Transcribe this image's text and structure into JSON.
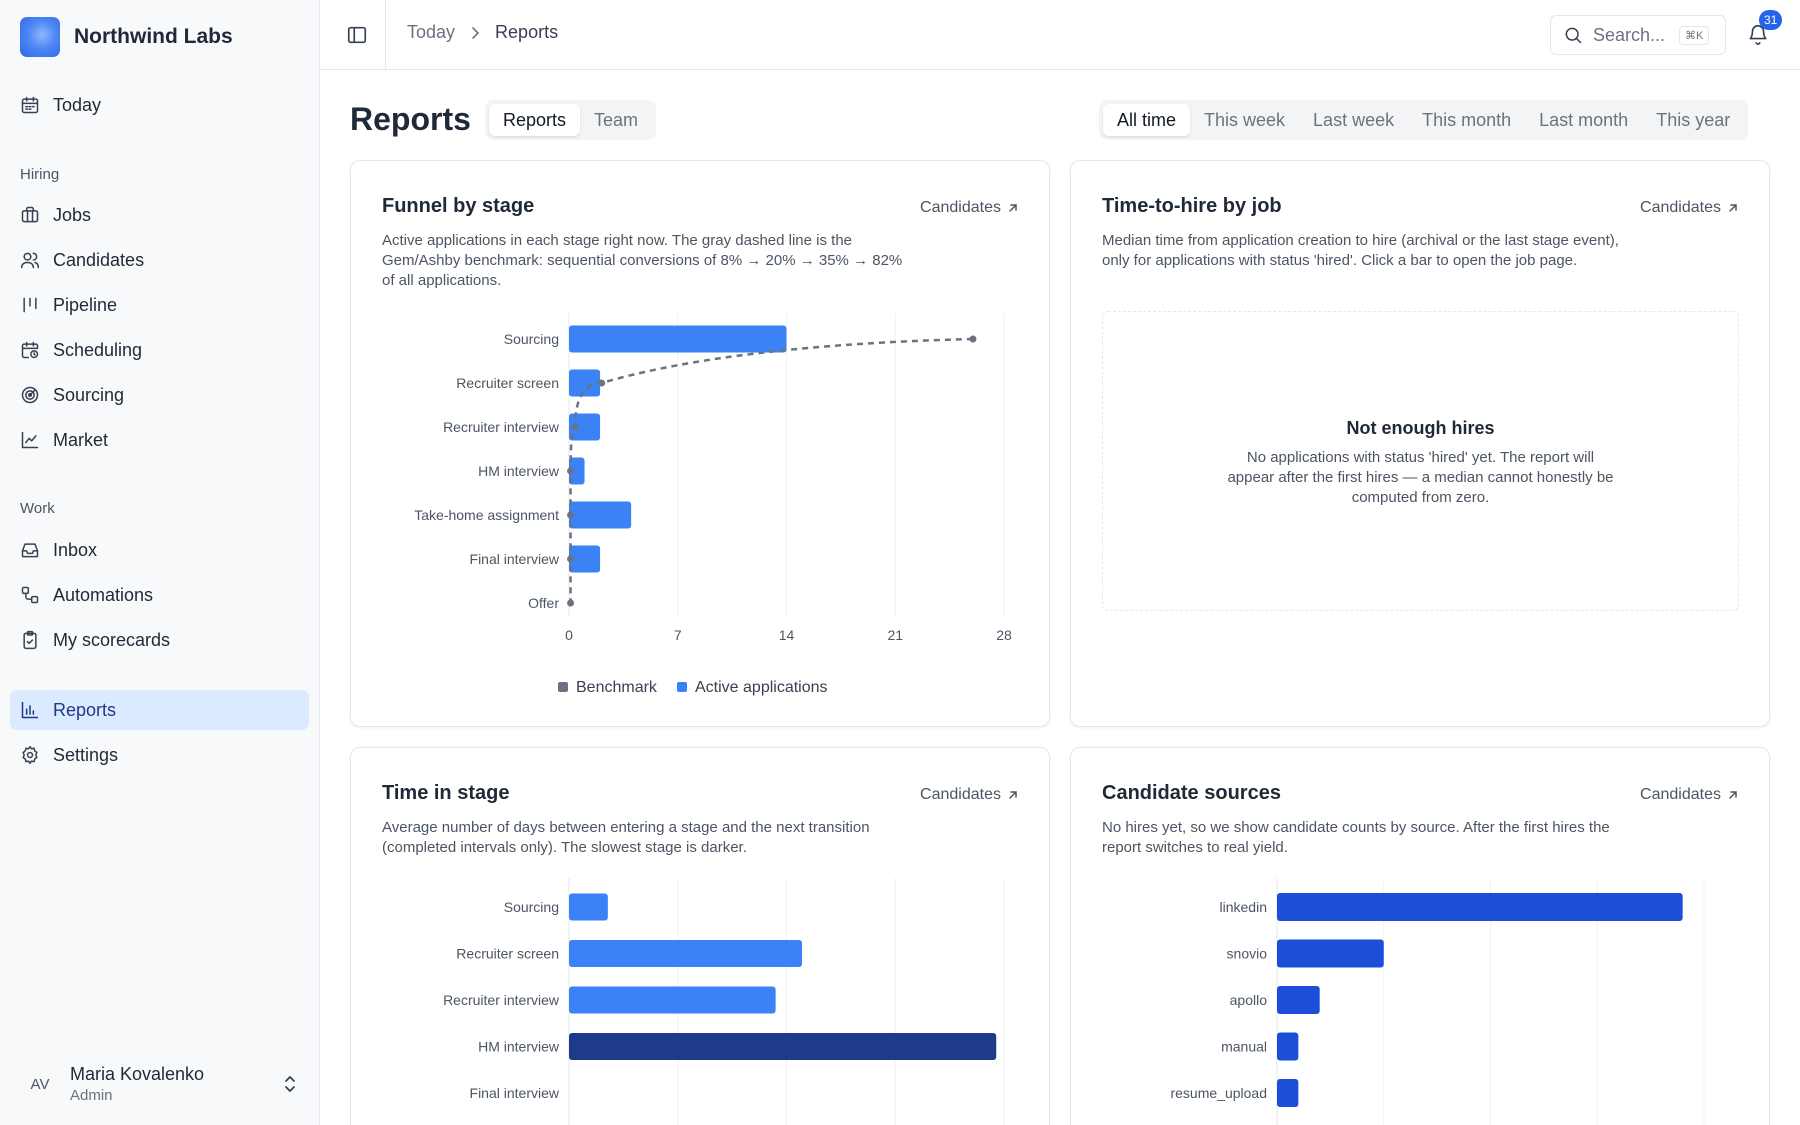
{
  "app": {
    "name": "Northwind Labs"
  },
  "sidebar": {
    "top_item": {
      "label": "Today",
      "icon": "calendar-icon"
    },
    "sections": [
      {
        "title": "Hiring",
        "items": [
          {
            "label": "Jobs",
            "icon": "briefcase-icon"
          },
          {
            "label": "Candidates",
            "icon": "users-icon"
          },
          {
            "label": "Pipeline",
            "icon": "kanban-icon"
          },
          {
            "label": "Scheduling",
            "icon": "calendar-clock-icon"
          },
          {
            "label": "Sourcing",
            "icon": "radar-icon"
          },
          {
            "label": "Market",
            "icon": "line-chart-icon"
          }
        ]
      },
      {
        "title": "Work",
        "items": [
          {
            "label": "Inbox",
            "icon": "inbox-icon"
          },
          {
            "label": "Automations",
            "icon": "workflow-icon"
          },
          {
            "label": "My scorecards",
            "icon": "clipboard-check-icon"
          }
        ]
      }
    ],
    "bottom_items": [
      {
        "label": "Reports",
        "icon": "bar-chart-icon",
        "active": true
      },
      {
        "label": "Settings",
        "icon": "gear-icon"
      }
    ],
    "user": {
      "initials": "AV",
      "name": "Maria Kovalenko",
      "role": "Admin"
    }
  },
  "header": {
    "breadcrumb": {
      "parent": "Today",
      "current": "Reports"
    },
    "search": {
      "placeholder": "Search...",
      "shortcut": "⌘K"
    },
    "notifications_count": "31"
  },
  "page": {
    "title": "Reports",
    "view_tabs": [
      {
        "label": "Reports",
        "active": true
      },
      {
        "label": "Team",
        "active": false
      }
    ],
    "period_tabs": [
      {
        "label": "All time",
        "active": true
      },
      {
        "label": "This week"
      },
      {
        "label": "Last week"
      },
      {
        "label": "This month"
      },
      {
        "label": "Last month"
      },
      {
        "label": "This year"
      }
    ]
  },
  "cards": {
    "funnel": {
      "title": "Funnel by stage",
      "link": "Candidates",
      "description": "Active applications in each stage right now. The gray dashed line is the Gem/Ashby benchmark: sequential conversions of 8% → 20% → 35% → 82% of all applications."
    },
    "time_to_hire": {
      "title": "Time-to-hire by job",
      "link": "Candidates",
      "description": "Median time from application creation to hire (archival or the last stage event), only for applications with status 'hired'. Click a bar to open the job page.",
      "empty_title": "Not enough hires",
      "empty_description": "No applications with status 'hired' yet. The report will appear after the first hires — a median cannot honestly be computed from zero."
    },
    "time_in_stage": {
      "title": "Time in stage",
      "link": "Candidates",
      "description": "Average number of days between entering a stage and the next transition (completed intervals only). The slowest stage is darker."
    },
    "sources": {
      "title": "Candidate sources",
      "link": "Candidates",
      "description": "No hires yet, so we show candidate counts by source. After the first hires the report switches to real yield."
    }
  },
  "chart_data": [
    {
      "id": "funnel",
      "type": "bar",
      "orientation": "horizontal",
      "categories": [
        "Sourcing",
        "Recruiter screen",
        "Recruiter interview",
        "HM interview",
        "Take-home assignment",
        "Final interview",
        "Offer"
      ],
      "series": [
        {
          "name": "Active applications",
          "values": [
            14,
            2,
            2,
            1,
            4,
            2,
            0
          ],
          "color": "#3b82f6"
        },
        {
          "name": "Benchmark",
          "values": [
            26,
            2.1,
            0.4,
            0.1,
            0.1,
            0.1,
            0.1
          ],
          "color": "#6b7280",
          "style": "dashed-line"
        }
      ],
      "xlim": [
        0,
        28
      ],
      "xticks": [
        0,
        7,
        14,
        21,
        28
      ],
      "legend": "bottom"
    },
    {
      "id": "time_in_stage",
      "type": "bar",
      "orientation": "horizontal",
      "categories": [
        "Sourcing",
        "Recruiter screen",
        "Recruiter interview",
        "HM interview",
        "Final interview"
      ],
      "values": [
        2.5,
        15,
        13.3,
        27.5,
        0
      ],
      "xlim": [
        0,
        28
      ],
      "color": "#3b82f6",
      "highlight_color": "#1e3a8a"
    },
    {
      "id": "sources",
      "type": "bar",
      "orientation": "horizontal",
      "categories": [
        "linkedin",
        "snovio",
        "apollo",
        "manual",
        "resume_upload"
      ],
      "values": [
        38,
        10,
        4,
        2,
        2
      ],
      "xlim": [
        0,
        40
      ],
      "color": "#1d4ed8"
    }
  ]
}
